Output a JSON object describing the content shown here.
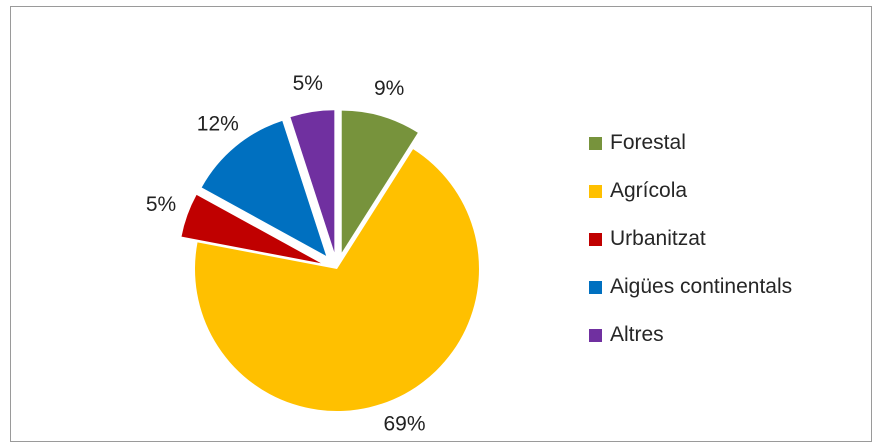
{
  "chart_data": {
    "type": "pie",
    "categories": [
      "Forestal",
      "Agrícola",
      "Urbanitzat",
      "Aigües continentals",
      "Altres"
    ],
    "values": [
      9,
      69,
      5,
      12,
      5
    ],
    "labels": [
      "9%",
      "69%",
      "5%",
      "12%",
      "5%"
    ],
    "colors": [
      "#77933c",
      "#ffc000",
      "#c00000",
      "#0070c0",
      "#7030a0"
    ],
    "exploded": true,
    "legend_position": "right"
  }
}
